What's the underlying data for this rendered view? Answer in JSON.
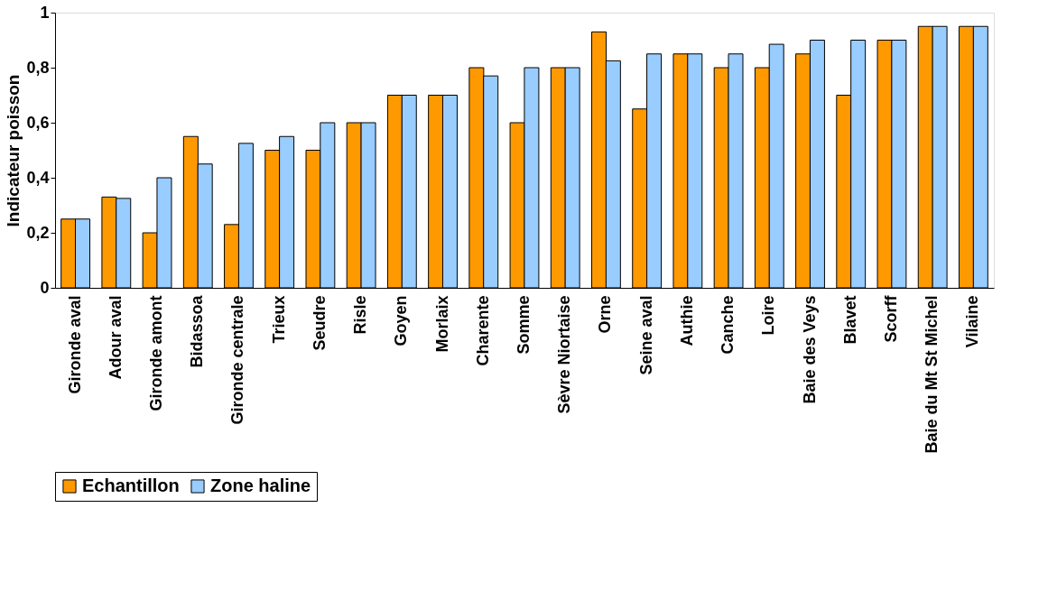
{
  "chart_data": {
    "type": "bar",
    "ylabel": "Indicateur poisson",
    "categories": [
      "Gironde aval",
      "Adour aval",
      "Gironde amont",
      "Bidassoa",
      "Gironde centrale",
      "Trieux",
      "Seudre",
      "Risle",
      "Goyen",
      "Morlaix",
      "Charente",
      "Somme",
      "Sèvre Niortaise",
      "Orne",
      "Seine aval",
      "Authie",
      "Canche",
      "Loire",
      "Baie des Veys",
      "Blavet",
      "Scorff",
      "Baie du Mt St Michel",
      "Vilaine"
    ],
    "series": [
      {
        "name": "Echantillon",
        "color": "#ff9900",
        "values": [
          0.25,
          0.33,
          0.2,
          0.55,
          0.23,
          0.5,
          0.5,
          0.6,
          0.7,
          0.7,
          0.8,
          0.6,
          0.8,
          0.93,
          0.65,
          0.85,
          0.8,
          0.8,
          0.85,
          0.7,
          0.9,
          0.95,
          0.95
        ]
      },
      {
        "name": "Zone haline",
        "color": "#99ccff",
        "values": [
          0.25,
          0.325,
          0.4,
          0.45,
          0.525,
          0.55,
          0.6,
          0.6,
          0.7,
          0.7,
          0.77,
          0.8,
          0.8,
          0.825,
          0.85,
          0.85,
          0.85,
          0.885,
          0.9,
          0.9,
          0.9,
          0.95,
          0.95
        ]
      }
    ],
    "ylim": [
      0,
      1
    ],
    "yticks": [
      {
        "value": 0,
        "label": "0"
      },
      {
        "value": 0.2,
        "label": "0,2"
      },
      {
        "value": 0.4,
        "label": "0,4"
      },
      {
        "value": 0.6,
        "label": "0,6"
      },
      {
        "value": 0.8,
        "label": "0,8"
      },
      {
        "value": 1,
        "label": "1"
      }
    ],
    "grid": false,
    "legend": "bottom"
  }
}
